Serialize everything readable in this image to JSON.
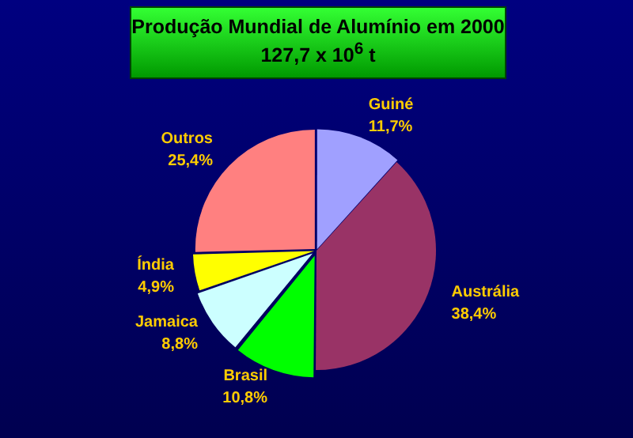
{
  "chart_data": {
    "type": "pie",
    "title": "Produção Mundial de Alumínio em 2000",
    "subtitle": "127,7 x 10$^{6}$ t",
    "categories": [
      "Guiné",
      "Austrália",
      "Brasil",
      "Jamaica",
      "Índia",
      "Outros"
    ],
    "values": [
      11.7,
      38.4,
      10.8,
      8.8,
      4.9,
      25.4
    ],
    "colors": [
      "#a0a0ff",
      "#993366",
      "#00ff00",
      "#ccffff",
      "#ffff00",
      "#ff8080"
    ],
    "value_labels": [
      "11,7%",
      "38,4%",
      "10,8%",
      "8,8%",
      "4,9%",
      "25,4%"
    ],
    "legend": false
  }
}
